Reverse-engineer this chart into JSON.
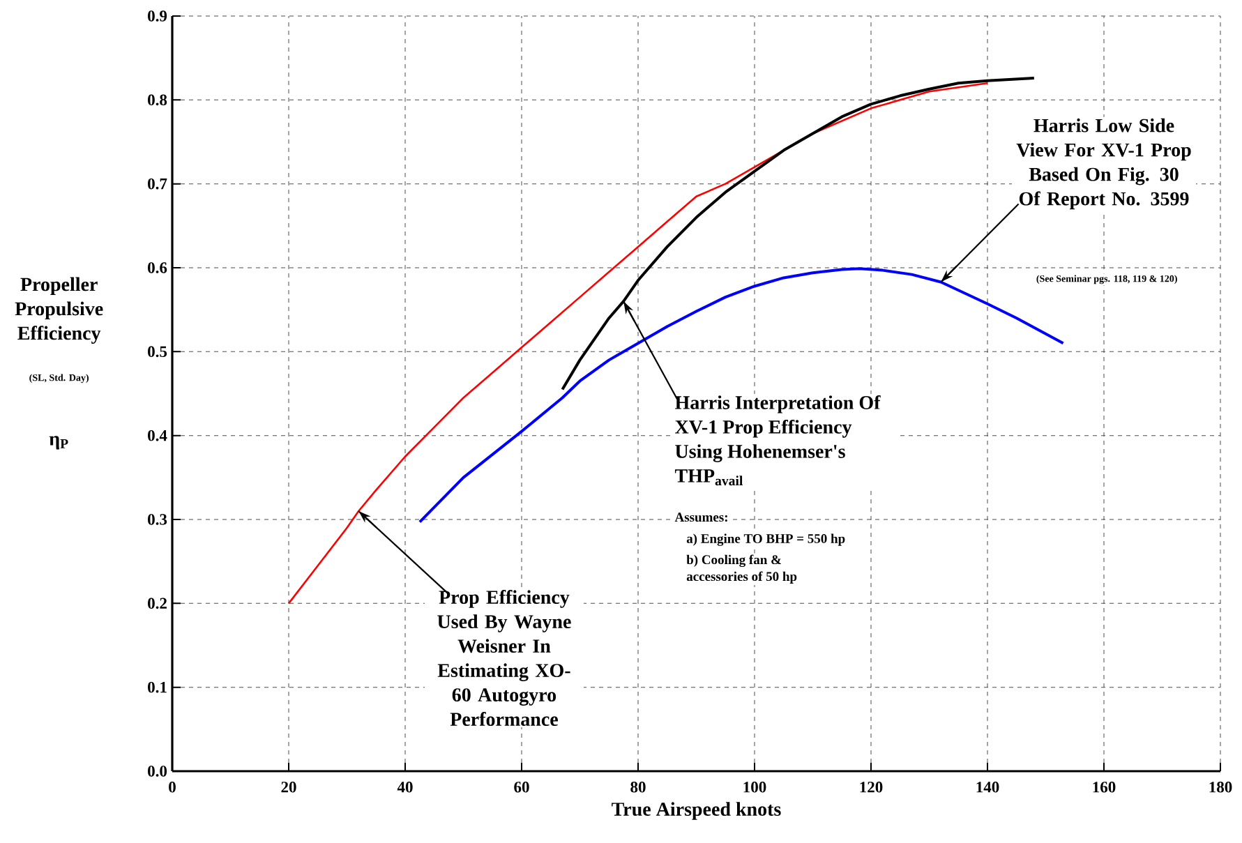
{
  "chart_data": {
    "type": "line",
    "xlabel": "True Airspeed   knots",
    "ylabel": "Propeller Propulsive Efficiency",
    "xlim": [
      0,
      180
    ],
    "xticks": [
      0,
      20,
      40,
      60,
      80,
      100,
      120,
      140,
      160,
      180
    ],
    "ylim": [
      0,
      0.9
    ],
    "yticks": [
      {
        "value": 0,
        "label": "0.0"
      },
      0.1,
      0.2,
      0.3,
      0.4,
      0.5,
      0.6,
      0.7,
      0.8,
      0.9
    ],
    "grid": true,
    "marker": "none",
    "line_style": "solid",
    "series": [
      {
        "color": "#ff0000",
        "x": [
          20,
          25,
          30,
          32,
          35,
          40,
          45,
          50,
          55,
          60,
          65,
          70,
          75,
          80,
          85,
          90,
          95,
          100,
          105,
          110,
          115,
          120,
          125,
          130,
          135,
          140
        ],
        "values": [
          0.2,
          0.245,
          0.29,
          0.31,
          0.335,
          0.375,
          0.41,
          0.445,
          0.475,
          0.505,
          0.535,
          0.565,
          0.595,
          0.625,
          0.655,
          0.685,
          0.7,
          0.72,
          0.74,
          0.76,
          0.775,
          0.79,
          0.8,
          0.81,
          0.815,
          0.82
        ]
      },
      {
        "color": "#000000",
        "x": [
          67,
          70,
          75,
          77.5,
          80,
          85,
          90,
          95,
          100,
          105,
          110,
          115,
          120,
          125,
          130,
          135,
          140,
          148
        ],
        "values": [
          0.455,
          0.49,
          0.54,
          0.56,
          0.585,
          0.625,
          0.66,
          0.69,
          0.715,
          0.74,
          0.76,
          0.78,
          0.795,
          0.805,
          0.813,
          0.82,
          0.823,
          0.826
        ]
      },
      {
        "color": "#0000ff",
        "x": [
          42.5,
          50,
          60,
          67,
          70,
          75,
          80,
          85,
          90,
          95,
          100,
          105,
          110,
          115,
          118,
          122,
          127,
          132,
          140,
          145,
          153
        ],
        "values": [
          0.297,
          0.35,
          0.405,
          0.445,
          0.465,
          0.49,
          0.51,
          0.53,
          0.548,
          0.565,
          0.578,
          0.588,
          0.594,
          0.598,
          0.599,
          0.597,
          0.592,
          0.583,
          0.557,
          0.54,
          0.51
        ]
      }
    ],
    "annotations": [
      "(SL, Std. Day)",
      "η$_{P}$",
      {
        "text": "Prop Efficiency Used By Wayne Weisner In Estimating XO-60 Autogyro Performance",
        "x": 32,
        "y": 0.31
      },
      {
        "text": "Harris Interpretation Of XV-1 Prop Efficiency Using Hohenemser's THP$_{avail}$",
        "x": 77.5,
        "y": 0.56
      },
      "Assumes:",
      "a) Engine TO BHP = 550 hp",
      "b) Cooling fan & accessories of 50 hp",
      {
        "text": "Harris Low Side View For XV-1 Prop Based On Fig. 30 Of Report No. 3599",
        "x": 132,
        "y": 0.583
      },
      "(See Seminar pgs. 118, 119 & 120)"
    ]
  }
}
